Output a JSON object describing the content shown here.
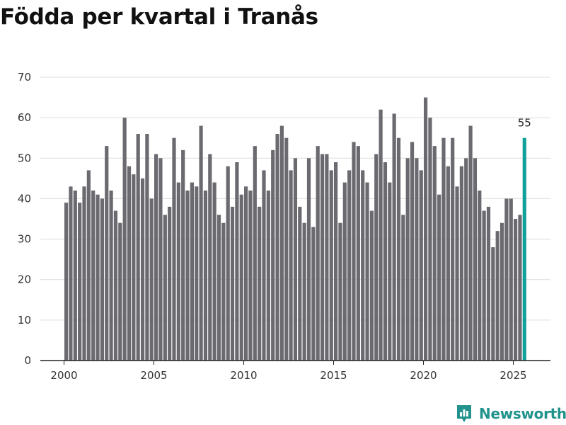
{
  "title": "Födda per kvartal i Tranås",
  "brand": {
    "name": "Newsworthy",
    "icon": "newsworthy-logo-icon"
  },
  "colors": {
    "bar": "#6b6a70",
    "highlight": "#12a19a",
    "grid": "#dcdcdc",
    "axis": "#222222"
  },
  "chart_data": {
    "type": "bar",
    "title": "Födda per kvartal i Tranås",
    "xlabel": "",
    "ylabel": "",
    "ylim": [
      0,
      70
    ],
    "yticks": [
      0,
      10,
      20,
      30,
      40,
      50,
      60,
      70
    ],
    "xticks": [
      "2000",
      "2005",
      "2010",
      "2015",
      "2020",
      "2025"
    ],
    "start": "2000 Q1",
    "highlight_last": true,
    "highlight_label": "55",
    "values": [
      39,
      43,
      42,
      39,
      43,
      47,
      42,
      41,
      40,
      53,
      42,
      37,
      34,
      60,
      48,
      46,
      56,
      45,
      56,
      40,
      51,
      50,
      36,
      38,
      55,
      44,
      52,
      42,
      44,
      43,
      58,
      42,
      51,
      44,
      36,
      34,
      48,
      38,
      49,
      41,
      43,
      42,
      53,
      38,
      47,
      42,
      52,
      56,
      58,
      55,
      47,
      50,
      38,
      34,
      50,
      33,
      53,
      51,
      51,
      47,
      49,
      34,
      44,
      47,
      54,
      53,
      47,
      44,
      37,
      51,
      62,
      49,
      44,
      61,
      55,
      36,
      50,
      54,
      50,
      47,
      65,
      60,
      53,
      41,
      55,
      48,
      55,
      43,
      48,
      50,
      58,
      50,
      42,
      37,
      38,
      28,
      32,
      34,
      40,
      40,
      35,
      36,
      55
    ]
  }
}
